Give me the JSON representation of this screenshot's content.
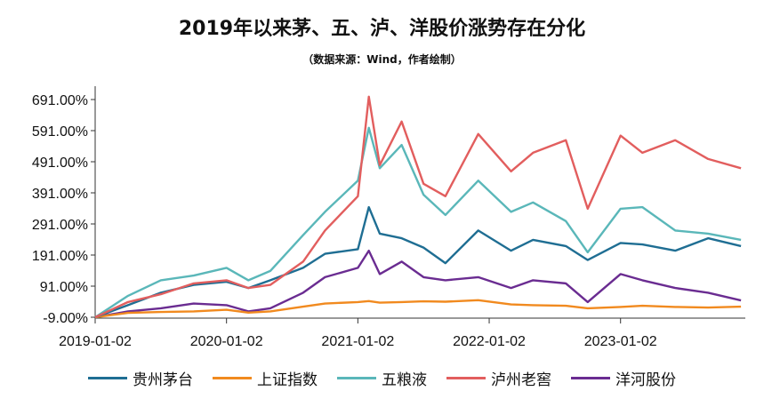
{
  "title": "2019年以来茅、五、泸、洋股价涨势存在分化",
  "subtitle": "（数据来源：Wind，作者绘制）",
  "chart_data": {
    "type": "line",
    "x_ticks": [
      "2019-01-02",
      "2020-01-02",
      "2021-01-02",
      "2022-01-02",
      "2023-01-02"
    ],
    "y_ticks": [
      "691.00%",
      "591.00%",
      "491.00%",
      "391.00%",
      "291.00%",
      "191.00%",
      "91.00%",
      "-9.00%"
    ],
    "ylim": [
      -9,
      721
    ],
    "grid": false,
    "legend_position": "bottom",
    "x": [
      "2019-01",
      "2019-04",
      "2019-07",
      "2019-10",
      "2020-01",
      "2020-03",
      "2020-05",
      "2020-08",
      "2020-10",
      "2021-01",
      "2021-02",
      "2021-03",
      "2021-05",
      "2021-07",
      "2021-09",
      "2021-12",
      "2022-03",
      "2022-05",
      "2022-08",
      "2022-10",
      "2023-01",
      "2023-03",
      "2023-06",
      "2023-09",
      "2023-12"
    ],
    "series": [
      {
        "name": "贵州茅台",
        "color": "#1f6e93",
        "values": [
          -9,
          30,
          70,
          95,
          105,
          85,
          110,
          150,
          195,
          210,
          345,
          260,
          245,
          215,
          165,
          270,
          205,
          240,
          220,
          175,
          230,
          225,
          205,
          245,
          220
        ]
      },
      {
        "name": "上证指数",
        "color": "#f18a1f",
        "values": [
          -9,
          5,
          8,
          10,
          15,
          6,
          10,
          25,
          35,
          40,
          43,
          38,
          40,
          42,
          41,
          46,
          32,
          30,
          28,
          20,
          24,
          28,
          24,
          22,
          25
        ]
      },
      {
        "name": "五粮液",
        "color": "#5ab7b9",
        "values": [
          -9,
          60,
          110,
          125,
          150,
          110,
          140,
          255,
          330,
          430,
          600,
          470,
          545,
          385,
          320,
          430,
          330,
          360,
          300,
          200,
          340,
          345,
          270,
          260,
          240
        ]
      },
      {
        "name": "泸州老窖",
        "color": "#e25e5e",
        "values": [
          -9,
          40,
          65,
          100,
          110,
          85,
          95,
          170,
          270,
          380,
          700,
          480,
          620,
          420,
          380,
          580,
          460,
          520,
          560,
          340,
          575,
          520,
          560,
          500,
          470
        ]
      },
      {
        "name": "洋河股份",
        "color": "#6a2c91",
        "values": [
          -9,
          10,
          20,
          35,
          30,
          10,
          20,
          70,
          120,
          150,
          205,
          130,
          170,
          120,
          110,
          120,
          85,
          110,
          100,
          40,
          130,
          110,
          85,
          70,
          45
        ]
      }
    ]
  }
}
